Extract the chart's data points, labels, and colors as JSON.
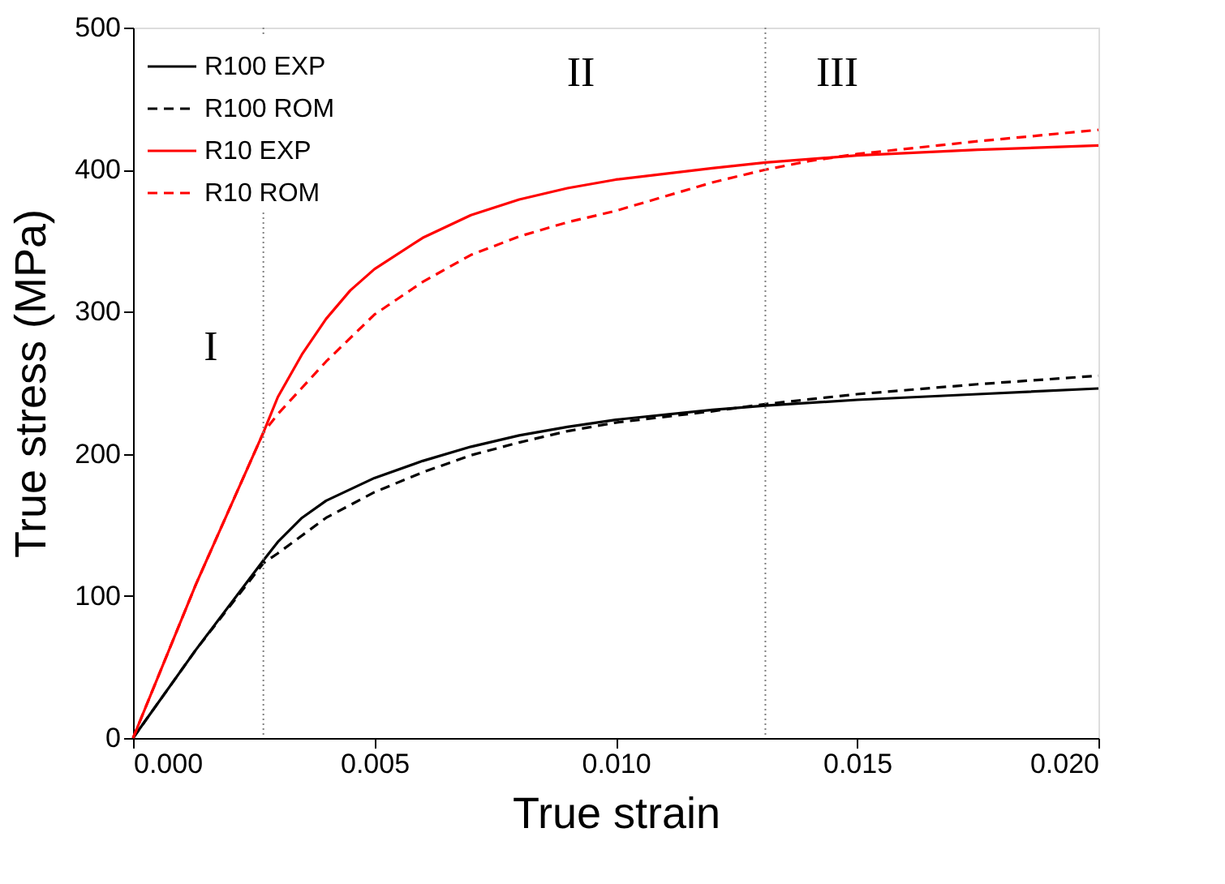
{
  "chart_data": {
    "type": "line",
    "xlabel": "True strain",
    "ylabel": "True stress (MPa)",
    "xlim": [
      0,
      0.02
    ],
    "ylim": [
      0,
      500
    ],
    "xticks": [
      {
        "value": 0,
        "label": "0.000"
      },
      {
        "value": 0.005,
        "label": "0.005"
      },
      {
        "value": 0.01,
        "label": "0.010"
      },
      {
        "value": 0.015,
        "label": "0.015"
      },
      {
        "value": 0.02,
        "label": "0.020"
      }
    ],
    "yticks": [
      0,
      100,
      200,
      300,
      400,
      500
    ],
    "grid": false,
    "legend": "top left",
    "marker": "none",
    "series": [
      {
        "name": "R100 EXP",
        "color": "#000000",
        "line_style": "solid",
        "x": [
          0,
          0.0013,
          0.0027,
          0.003,
          0.0035,
          0.004,
          0.005,
          0.006,
          0.007,
          0.008,
          0.009,
          0.01,
          0.012,
          0.0131,
          0.015,
          0.0175,
          0.02
        ],
        "values": [
          0,
          62,
          125,
          138,
          155,
          167,
          183,
          195,
          205,
          213,
          219,
          224,
          231,
          234,
          238,
          242,
          246
        ]
      },
      {
        "name": "R100 ROM",
        "color": "#000000",
        "line_style": "dashed",
        "x": [
          0,
          0.0013,
          0.0027,
          0.003,
          0.004,
          0.005,
          0.006,
          0.007,
          0.008,
          0.009,
          0.01,
          0.012,
          0.0131,
          0.015,
          0.0175,
          0.02
        ],
        "values": [
          0,
          62,
          123,
          130,
          155,
          173,
          187,
          199,
          208,
          216,
          222,
          230,
          235,
          242,
          249,
          255
        ]
      },
      {
        "name": "R10 EXP",
        "color": "#ff0000",
        "line_style": "solid",
        "x": [
          0,
          0.0013,
          0.0027,
          0.003,
          0.0035,
          0.004,
          0.0045,
          0.005,
          0.006,
          0.007,
          0.008,
          0.009,
          0.01,
          0.012,
          0.0131,
          0.015,
          0.0175,
          0.02
        ],
        "values": [
          0,
          108,
          215,
          240,
          270,
          295,
          315,
          330,
          352,
          368,
          379,
          387,
          393,
          401,
          405,
          410,
          414,
          417
        ]
      },
      {
        "name": "R10 ROM",
        "color": "#ff0000",
        "line_style": "dashed",
        "x": [
          0,
          0.0013,
          0.0027,
          0.003,
          0.004,
          0.005,
          0.006,
          0.007,
          0.008,
          0.009,
          0.01,
          0.011,
          0.012,
          0.0131,
          0.014,
          0.015,
          0.0175,
          0.02
        ],
        "values": [
          0,
          108,
          215,
          228,
          265,
          298,
          321,
          340,
          353,
          363,
          371,
          381,
          391,
          400,
          406,
          411,
          420,
          428
        ]
      }
    ],
    "ref_lines": [
      {
        "axis": "x",
        "value": 0.0027,
        "color": "#808080",
        "line_style": "dotted"
      },
      {
        "axis": "x",
        "value": 0.0131,
        "color": "#808080",
        "line_style": "dotted"
      }
    ],
    "annotations": [
      "I",
      "II",
      "III"
    ]
  }
}
